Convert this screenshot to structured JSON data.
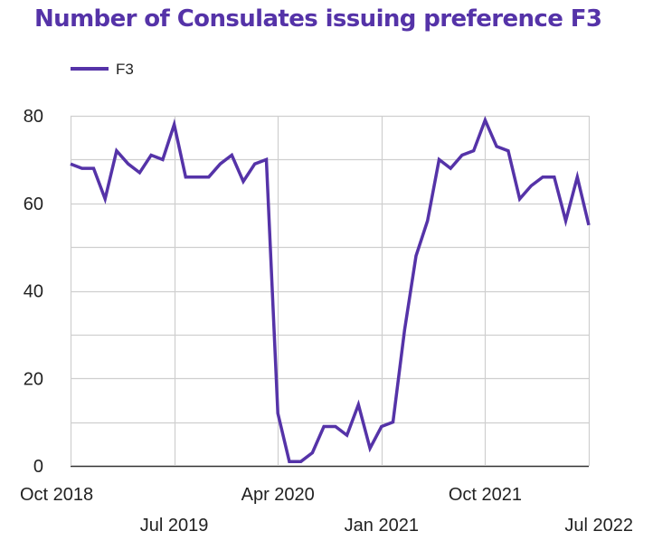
{
  "chart_data": {
    "type": "line",
    "title": "Number of Consulates issuing preference F3",
    "xlabel": "",
    "ylabel": "",
    "ylim": [
      0,
      80
    ],
    "yticks": [
      0,
      20,
      40,
      60,
      80
    ],
    "xlim": [
      "2018-10",
      "2022-07"
    ],
    "xticks": [
      {
        "label": "Oct 2018",
        "date": "2018-10"
      },
      {
        "label": "Jul 2019",
        "date": "2019-07"
      },
      {
        "label": "Apr 2020",
        "date": "2020-04"
      },
      {
        "label": "Jan 2021",
        "date": "2021-01"
      },
      {
        "label": "Oct 2021",
        "date": "2021-10"
      },
      {
        "label": "Jul 2022",
        "date": "2022-07"
      }
    ],
    "grid": true,
    "legend_position": "top-left",
    "series": [
      {
        "name": "F3",
        "color": "#5533a8",
        "x": [
          "2018-10",
          "2018-11",
          "2018-12",
          "2019-01",
          "2019-02",
          "2019-03",
          "2019-04",
          "2019-05",
          "2019-06",
          "2019-07",
          "2019-08",
          "2019-09",
          "2019-10",
          "2019-11",
          "2019-12",
          "2020-01",
          "2020-02",
          "2020-03",
          "2020-04",
          "2020-05",
          "2020-06",
          "2020-07",
          "2020-08",
          "2020-09",
          "2020-10",
          "2020-11",
          "2020-12",
          "2021-01",
          "2021-02",
          "2021-03",
          "2021-04",
          "2021-05",
          "2021-06",
          "2021-07",
          "2021-08",
          "2021-09",
          "2021-10",
          "2021-11",
          "2021-12",
          "2022-01",
          "2022-02",
          "2022-03",
          "2022-04",
          "2022-05",
          "2022-06",
          "2022-07"
        ],
        "values": [
          69,
          68,
          68,
          61,
          72,
          69,
          67,
          71,
          70,
          78,
          66,
          66,
          66,
          69,
          71,
          65,
          69,
          70,
          12,
          1,
          1,
          3,
          9,
          9,
          7,
          14,
          4,
          9,
          10,
          31,
          48,
          56,
          70,
          68,
          71,
          72,
          79,
          73,
          72,
          61,
          64,
          66,
          66,
          56,
          66,
          55
        ]
      }
    ]
  }
}
